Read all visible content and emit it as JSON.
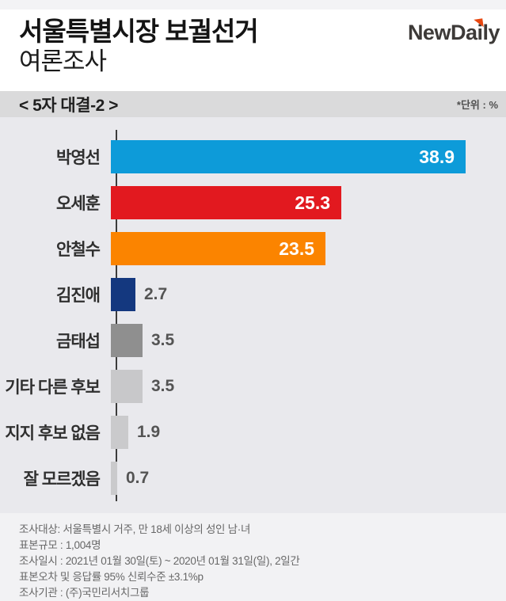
{
  "header": {
    "title_line1": "서울특별시장 보궐선거",
    "title_line2": "여론조사",
    "logo_text": "NewDaily",
    "logo_color": "#3d3a38",
    "logo_accent_color": "#e8470f"
  },
  "subheader": {
    "label": "< 5자 대결-2 >",
    "unit_note": "*단위 : %"
  },
  "chart_data": {
    "type": "bar",
    "orientation": "horizontal",
    "title": "서울특별시장 보궐선거 여론조사 < 5자 대결-2 >",
    "unit": "%",
    "xlim": [
      0,
      40
    ],
    "grid": false,
    "legend": false,
    "categories": [
      "박영선",
      "오세훈",
      "안철수",
      "김진애",
      "금태섭",
      "기타 다른 후보",
      "지지 후보 없음",
      "잘 모르겠음"
    ],
    "values": [
      38.9,
      25.3,
      23.5,
      2.7,
      3.5,
      3.5,
      1.9,
      0.7
    ],
    "bar_colors": [
      "#0d9bd9",
      "#e2191f",
      "#fb8400",
      "#14387f",
      "#8f8f8f",
      "#c8c8ca",
      "#cacacc",
      "#cacacc"
    ],
    "value_label_inside_threshold": 10,
    "inside_label_color": "#ffffff",
    "outside_label_color": "#545454"
  },
  "footer": {
    "lines": [
      "조사대상: 서울특별시 거주, 만 18세 이상의 성인 남·녀",
      "표본규모 : 1,004명",
      "조사일시 : 2021년 01월 30일(토) ~ 2020년 01월 31일(일), 2일간",
      "표본오차 및 응답률 95% 신뢰수준 ±3.1%p",
      "조사기관 : (주)국민리서치그룹"
    ]
  }
}
